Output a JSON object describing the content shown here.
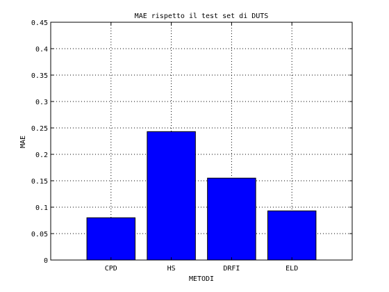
{
  "chart_data": {
    "type": "bar",
    "title": "MAE rispetto il test set di DUTS",
    "xlabel": "METODI",
    "ylabel": "MAE",
    "categories": [
      "CPD",
      "HS",
      "DRFI",
      "ELD"
    ],
    "values": [
      0.08,
      0.243,
      0.155,
      0.093
    ],
    "ylim": [
      0,
      0.45
    ],
    "yticks": [
      "0",
      "0.05",
      "0.1",
      "0.15",
      "0.2",
      "0.25",
      "0.3",
      "0.35",
      "0.4",
      "0.45"
    ],
    "grid": true,
    "bar_color": "#0000ff"
  }
}
